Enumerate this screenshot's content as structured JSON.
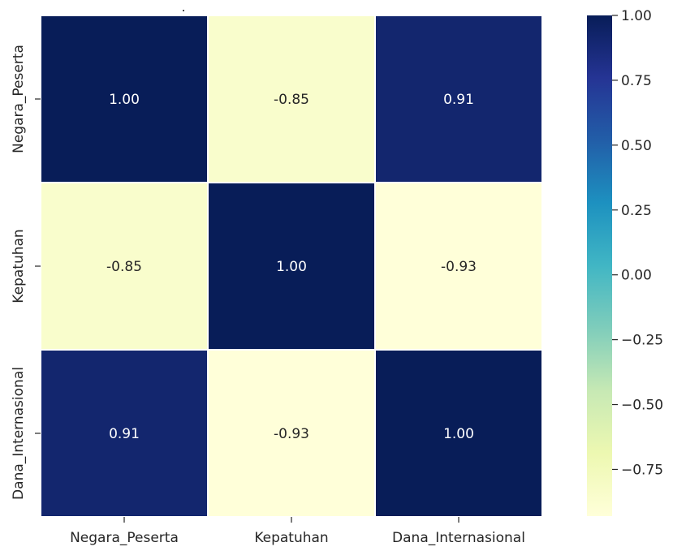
{
  "chart_data": {
    "type": "heatmap",
    "title": ".",
    "xlabel": "",
    "ylabel": "",
    "row_labels": [
      "Negara_Peserta",
      "Kepatuhan",
      "Dana_Internasional"
    ],
    "col_labels": [
      "Negara_Peserta",
      "Kepatuhan",
      "Dana_Internasional"
    ],
    "values": [
      [
        1.0,
        -0.85,
        0.91
      ],
      [
        -0.85,
        1.0,
        -0.93
      ],
      [
        0.91,
        -0.93,
        1.0
      ]
    ],
    "value_format": "0.00",
    "colormap": "YlGnBu",
    "color_range": [
      -0.93,
      1.0
    ],
    "colorbar": {
      "ticks": [
        1.0,
        0.75,
        0.5,
        0.25,
        0.0,
        -0.25,
        -0.5,
        -0.75
      ],
      "tick_labels": [
        "1.00",
        "0.75",
        "0.50",
        "0.25",
        "0.00",
        "−0.25",
        "−0.50",
        "−0.75"
      ]
    },
    "cell_border_color": "#ffffff",
    "annotation_colors": {
      "on_dark": "#ffffff",
      "on_light": "#262626"
    }
  }
}
